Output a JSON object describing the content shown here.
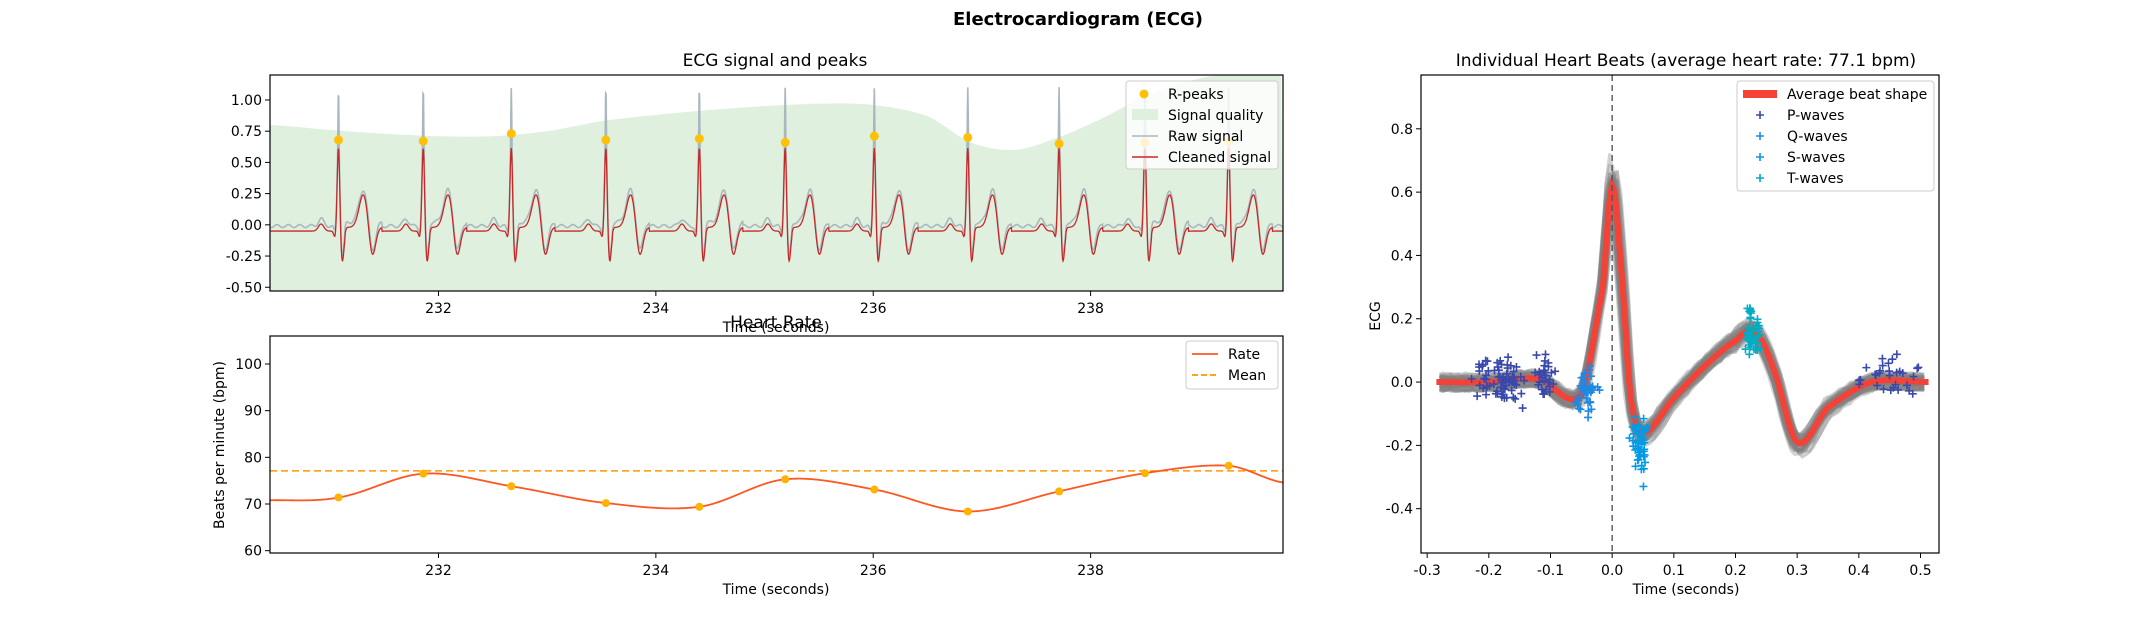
{
  "figure": {
    "title": "Electrocardiogram (ECG)"
  },
  "chart_data": [
    {
      "type": "line",
      "title": "ECG signal and peaks",
      "xlabel": "Time (seconds)",
      "ylabel": "",
      "xlim": [
        230.45,
        239.77
      ],
      "ylim": [
        -0.53,
        1.2
      ],
      "xticks": [
        232,
        234,
        236,
        238
      ],
      "yticks": [
        -0.5,
        -0.25,
        0.0,
        0.25,
        0.5,
        0.75,
        1.0
      ],
      "legend_position": "top-right",
      "series": [
        {
          "name": "R-peaks",
          "kind": "scatter",
          "color": "#ffc107",
          "x": [
            231.08,
            231.86,
            232.67,
            233.54,
            234.4,
            235.19,
            236.01,
            236.87,
            237.71,
            238.5,
            239.27
          ],
          "y": [
            0.68,
            0.67,
            0.73,
            0.68,
            0.69,
            0.66,
            0.71,
            0.7,
            0.65,
            0.66,
            0.67
          ]
        },
        {
          "name": "Signal quality",
          "kind": "area",
          "color": "#dff0df",
          "x": [
            230.45,
            231.0,
            231.5,
            232.0,
            232.5,
            233.0,
            233.5,
            234.0,
            234.5,
            235.0,
            235.5,
            236.0,
            236.5,
            236.9,
            237.3,
            237.7,
            238.1,
            238.5,
            238.9,
            239.3,
            239.77
          ],
          "y": [
            0.8,
            0.76,
            0.73,
            0.71,
            0.71,
            0.75,
            0.83,
            0.88,
            0.92,
            0.95,
            0.97,
            0.96,
            0.87,
            0.66,
            0.6,
            0.7,
            0.85,
            1.03,
            1.15,
            1.22,
            1.25
          ]
        },
        {
          "name": "Raw signal",
          "kind": "line",
          "color": "#a9b8be"
        },
        {
          "name": "Cleaned signal",
          "kind": "line",
          "color": "#c62828"
        }
      ]
    },
    {
      "type": "line",
      "title": "Heart Rate",
      "xlabel": "Time (seconds)",
      "ylabel": "Beats per minute (bpm)",
      "xlim": [
        230.45,
        239.77
      ],
      "ylim": [
        59.5,
        106
      ],
      "xticks": [
        232,
        234,
        236,
        238
      ],
      "yticks": [
        60,
        70,
        80,
        90,
        100
      ],
      "legend_position": "top-right",
      "series": [
        {
          "name": "Rate",
          "kind": "line",
          "color": "#ff5722",
          "x": [
            231.08,
            231.86,
            232.67,
            233.54,
            234.4,
            235.19,
            236.01,
            236.87,
            237.71,
            238.5,
            239.27
          ],
          "y": [
            71.4,
            76.5,
            73.8,
            70.2,
            69.4,
            75.3,
            73.1,
            68.4,
            72.7,
            76.6,
            78.2
          ]
        },
        {
          "name": "Mean",
          "kind": "hline",
          "color": "#ff9800",
          "y": 77.1
        }
      ]
    },
    {
      "type": "line",
      "title": "Individual Heart Beats (average heart rate: 77.1 bpm)",
      "xlabel": "Time (seconds)",
      "ylabel": "ECG",
      "xlim": [
        -0.31,
        0.53
      ],
      "ylim": [
        -0.54,
        0.97
      ],
      "xticks": [
        -0.3,
        -0.2,
        -0.1,
        0.0,
        0.1,
        0.2,
        0.3,
        0.4,
        0.5
      ],
      "yticks": [
        -0.4,
        -0.2,
        0.0,
        0.2,
        0.4,
        0.6,
        0.8
      ],
      "legend_position": "top-right",
      "series": [
        {
          "name": "Average beat shape",
          "kind": "line",
          "color": "#f44336",
          "x": [
            -0.28,
            -0.2,
            -0.12,
            -0.05,
            -0.015,
            0.0,
            0.015,
            0.03,
            0.05,
            0.1,
            0.15,
            0.2,
            0.23,
            0.26,
            0.3,
            0.35,
            0.42,
            0.51
          ],
          "y": [
            0.0,
            0.0,
            0.01,
            -0.04,
            0.3,
            0.62,
            0.35,
            -0.05,
            -0.16,
            -0.05,
            0.05,
            0.13,
            0.16,
            0.05,
            -0.19,
            -0.08,
            0.0,
            0.0
          ]
        },
        {
          "name": "P-waves",
          "kind": "scatter",
          "color": "#3949ab"
        },
        {
          "name": "Q-waves",
          "kind": "scatter",
          "color": "#1e88e5"
        },
        {
          "name": "S-waves",
          "kind": "scatter",
          "color": "#039be5"
        },
        {
          "name": "T-waves",
          "kind": "scatter",
          "color": "#00acc1"
        }
      ]
    }
  ]
}
